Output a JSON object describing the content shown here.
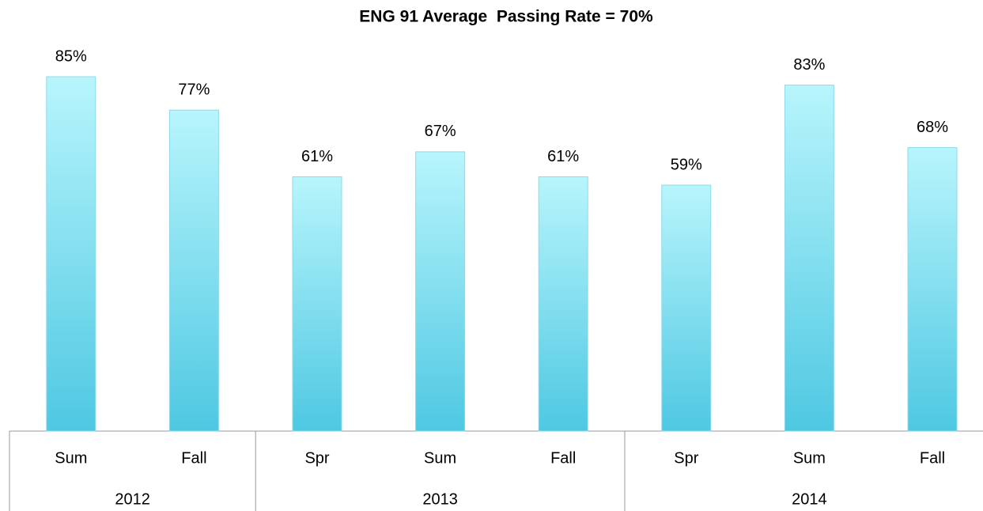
{
  "chart_data": {
    "type": "bar",
    "title": "ENG 91 Average  Passing Rate = 70%",
    "groups": [
      {
        "name": "2012",
        "categories": [
          "Sum",
          "Fall"
        ]
      },
      {
        "name": "2013",
        "categories": [
          "Spr",
          "Sum",
          "Fall"
        ]
      },
      {
        "name": "2014",
        "categories": [
          "Spr",
          "Sum",
          "Fall"
        ]
      }
    ],
    "values": [
      85,
      77,
      61,
      67,
      61,
      59,
      83,
      68
    ],
    "value_labels": [
      "85%",
      "77%",
      "61%",
      "67%",
      "61%",
      "59%",
      "83%",
      "68%"
    ],
    "color": "#4ec8e2"
  }
}
